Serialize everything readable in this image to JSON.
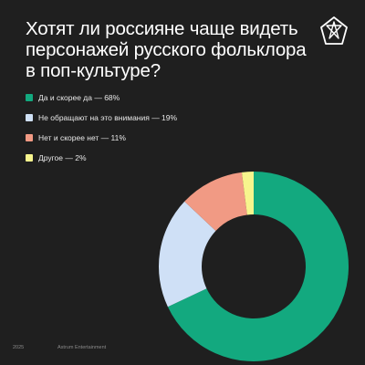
{
  "title_lines": [
    "Хотят ли россияне чаще видеть",
    "персонажей русского фольклора",
    "в поп-культуре?"
  ],
  "logo": {
    "icon": "star-outline-logo"
  },
  "chart_data": {
    "type": "pie",
    "style": "donut",
    "title": "Хотят ли россияне чаще видеть персонажей русского фольклора в поп-культуре?",
    "legend_position": "top-left",
    "categories": [
      "Да и скорее да — 68%",
      "Не обращают на это внимания — 19%",
      "Нет и скорее нет — 11%",
      "Другое — 2%"
    ],
    "values": [
      68,
      19,
      11,
      2
    ],
    "colors": [
      "#13a97f",
      "#cfe0f6",
      "#f19a84",
      "#f7f58d"
    ]
  },
  "footer": {
    "year": "2025",
    "brand": "Astrum Entertainment"
  }
}
